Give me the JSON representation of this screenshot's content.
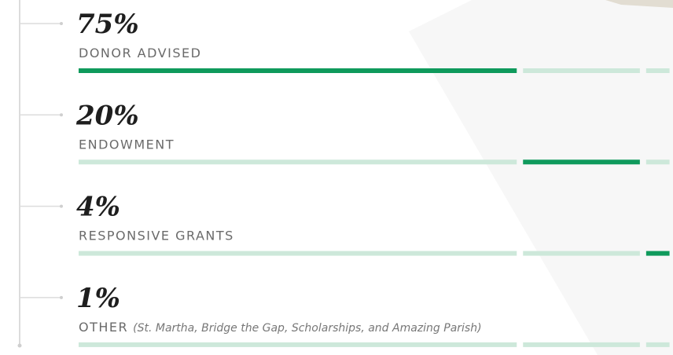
{
  "items": [
    {
      "value": 75,
      "label": "75%",
      "name": "DONOR ADVISED"
    },
    {
      "value": 20,
      "label": "20%",
      "name": "ENDOWMENT"
    },
    {
      "value": 4,
      "label": "4%",
      "name": "RESPONSIVE GRANTS"
    },
    {
      "value": 1,
      "label": "1%",
      "name": "OTHER",
      "note": "(St. Martha, Bridge the Gap, Scholarships, and Amazing Parish)"
    }
  ]
}
